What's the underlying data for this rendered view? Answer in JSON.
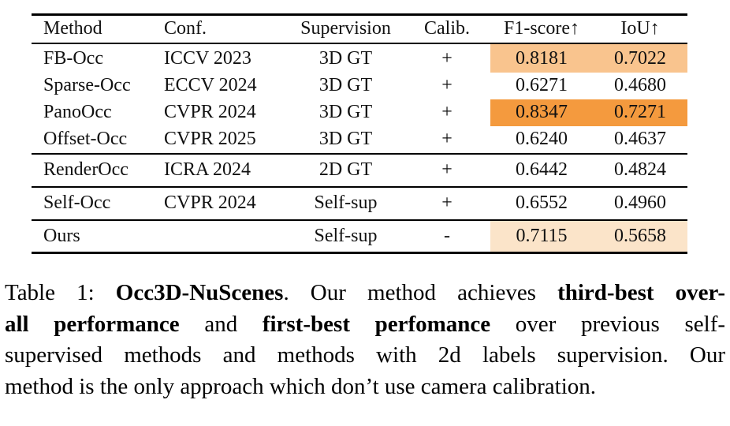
{
  "table": {
    "columns": [
      {
        "key": "method",
        "label": "Method"
      },
      {
        "key": "conf",
        "label": "Conf."
      },
      {
        "key": "supervision",
        "label": "Supervision"
      },
      {
        "key": "calib",
        "label": "Calib."
      },
      {
        "key": "f1",
        "label": "F1-score↑"
      },
      {
        "key": "iou",
        "label": "IoU↑"
      }
    ],
    "rows": [
      {
        "method": "FB-Occ",
        "conf": "ICCV 2023",
        "supervision": "3D GT",
        "calib": "+",
        "f1": "0.8181",
        "iou": "0.7022",
        "highlight": "second",
        "rule_before": false
      },
      {
        "method": "Sparse-Occ",
        "conf": "ECCV 2024",
        "supervision": "3D GT",
        "calib": "+",
        "f1": "0.6271",
        "iou": "0.4680",
        "highlight": null,
        "rule_before": false
      },
      {
        "method": "PanoOcc",
        "conf": "CVPR 2024",
        "supervision": "3D GT",
        "calib": "+",
        "f1": "0.8347",
        "iou": "0.7271",
        "highlight": "first",
        "rule_before": false
      },
      {
        "method": "Offset-Occ",
        "conf": "CVPR 2025",
        "supervision": "3D GT",
        "calib": "+",
        "f1": "0.6240",
        "iou": "0.4637",
        "highlight": null,
        "rule_before": false
      },
      {
        "method": "RenderOcc",
        "conf": "ICRA 2024",
        "supervision": "2D GT",
        "calib": "+",
        "f1": "0.6442",
        "iou": "0.4824",
        "highlight": null,
        "rule_before": true
      },
      {
        "method": "Self-Occ",
        "conf": "CVPR 2024",
        "supervision": "Self-sup",
        "calib": "+",
        "f1": "0.6552",
        "iou": "0.4960",
        "highlight": null,
        "rule_before": true
      },
      {
        "method": "Ours",
        "conf": "",
        "supervision": "Self-sup",
        "calib": "-",
        "f1": "0.7115",
        "iou": "0.5658",
        "highlight": "third",
        "rule_before": true
      }
    ]
  },
  "colors": {
    "highlight_first": "#F49A3E",
    "highlight_second": "#F9C48E",
    "highlight_third": "#FBE4C9"
  },
  "caption": {
    "lines": [
      [
        {
          "text": "Table 1: ",
          "bold": false
        },
        {
          "text": "Occ3D-NuScenes",
          "bold": true
        },
        {
          "text": ". Our method achieves ",
          "bold": false
        },
        {
          "text": "third-best over-",
          "bold": true
        }
      ],
      [
        {
          "text": "all performance",
          "bold": true
        },
        {
          "text": " and ",
          "bold": false
        },
        {
          "text": "first-best perfomance",
          "bold": true
        },
        {
          "text": " over previous self-",
          "bold": false
        }
      ],
      [
        {
          "text": "supervised methods and methods with 2d labels supervision. Our",
          "bold": false
        }
      ],
      [
        {
          "text": "method is the only approach which don’t use camera calibration.",
          "bold": false
        }
      ]
    ]
  }
}
